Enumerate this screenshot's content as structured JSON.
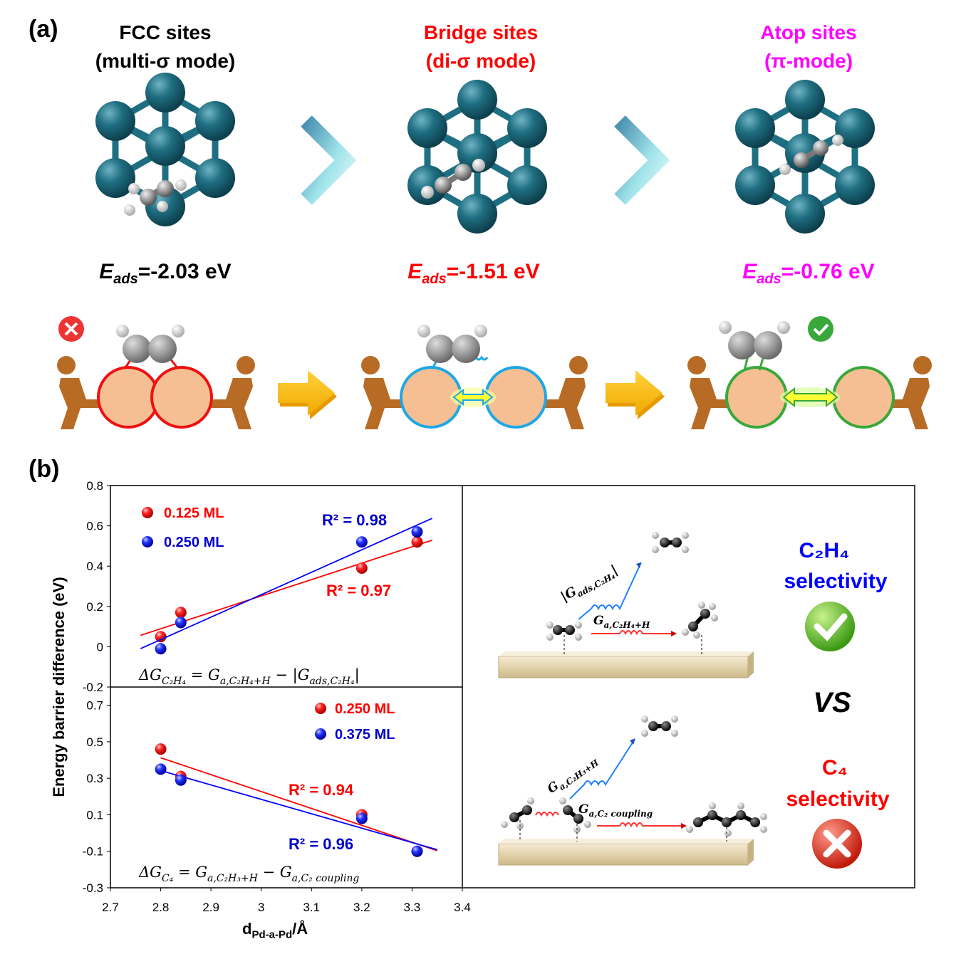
{
  "panel_a": {
    "label": "(a)",
    "sites": [
      {
        "title": "FCC sites",
        "mode": "(multi-σ mode)",
        "eads_sub": "ads",
        "eads_value": "=-2.03 eV",
        "color": "#000000"
      },
      {
        "title": "Bridge sites",
        "mode": "(di-σ mode)",
        "eads_sub": "ads",
        "eads_value": "=-1.51 eV",
        "color": "#ff0000"
      },
      {
        "title": "Atop sites",
        "mode": "(π-mode)",
        "eads_sub": "ads",
        "eads_value": "=-0.76 eV",
        "color": "#ff00ff"
      }
    ],
    "eads_symbol": "E"
  },
  "panel_b": {
    "label": "(b)",
    "ylabel": "Energy barrier difference (eV)",
    "xlabel_main": "d",
    "xlabel_sub": "Pd-a-Pd",
    "xlabel_unit": "/Å",
    "top_legend": [
      "0.125 ML",
      "0.250 ML"
    ],
    "top_r2_blue": "R² = 0.98",
    "top_r2_red": "R² = 0.97",
    "bottom_legend": [
      "0.250 ML",
      "0.375 ML"
    ],
    "bottom_r2_red": "R² = 0.94",
    "bottom_r2_blue": "R² = 0.96",
    "right": {
      "c2h4_title_1": "C₂H₄",
      "c2h4_title_2": "selectivity",
      "vs": "VS",
      "c4_title_1": "C₄",
      "c4_title_2": "selectivity"
    }
  },
  "chart_data": [
    {
      "type": "scatter",
      "xlim": [
        2.7,
        3.4
      ],
      "ylim": [
        -0.2,
        0.8
      ],
      "series": [
        {
          "name": "0.125 ML",
          "color": "#ff0000",
          "x": [
            2.8,
            2.84,
            3.2,
            3.31
          ],
          "y": [
            0.05,
            0.17,
            0.39,
            0.52
          ],
          "r2": 0.97
        },
        {
          "name": "0.250 ML",
          "color": "#0000ff",
          "x": [
            2.8,
            2.84,
            3.2,
            3.31
          ],
          "y": [
            -0.01,
            0.12,
            0.52,
            0.57
          ],
          "r2": 0.98
        }
      ],
      "equation": "ΔG_C2H4 = G_a,C2H4+H − |G_ads,C2H4|"
    },
    {
      "type": "scatter",
      "xlim": [
        2.7,
        3.4
      ],
      "ylim": [
        -0.3,
        0.8
      ],
      "series": [
        {
          "name": "0.250 ML",
          "color": "#ff0000",
          "x": [
            2.8,
            2.84,
            3.2,
            3.31
          ],
          "y": [
            0.46,
            0.31,
            0.1,
            -0.1
          ],
          "r2": 0.94
        },
        {
          "name": "0.375 ML",
          "color": "#0000ff",
          "x": [
            2.8,
            2.84,
            3.2,
            3.31
          ],
          "y": [
            0.35,
            0.29,
            0.08,
            -0.1
          ],
          "r2": 0.96
        }
      ],
      "equation": "ΔG_C4 = G_a,C2H3+H − G_a,C2 coupling"
    }
  ],
  "axis_ticks": {
    "top_y": [
      "0.8",
      "0.6",
      "0.4",
      "0.2",
      "0",
      "-0.2"
    ],
    "bottom_y": [
      "0.7",
      "0.5",
      "0.3",
      "0.1",
      "-0.1",
      "-0.3"
    ],
    "x": [
      "2.7",
      "2.8",
      "2.9",
      "3",
      "3.1",
      "3.2",
      "3.3",
      "3.4"
    ]
  }
}
